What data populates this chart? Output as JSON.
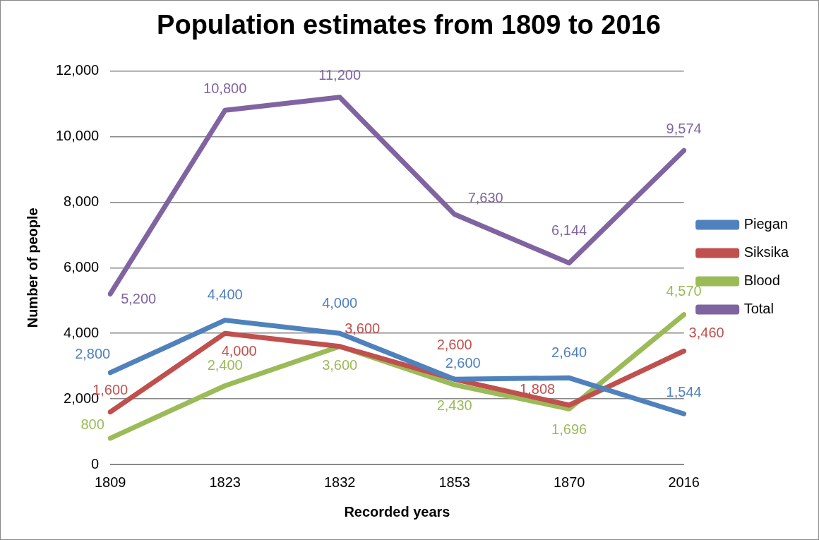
{
  "chart_data": {
    "type": "line",
    "title": "Population estimates from 1809 to 2016",
    "xlabel": "Recorded years",
    "ylabel": "Number of people",
    "categories": [
      "1809",
      "1823",
      "1832",
      "1853",
      "1870",
      "2016"
    ],
    "series": [
      {
        "name": "Piegan",
        "color": "#4f81bd",
        "values": [
          2800,
          4400,
          4000,
          2600,
          2640,
          1544
        ],
        "value_labels": [
          "2,800",
          "4,400",
          "4,000",
          "2,600",
          "2,640",
          "1,544"
        ]
      },
      {
        "name": "Siksika",
        "color": "#c0504d",
        "values": [
          1600,
          4000,
          3600,
          2600,
          1808,
          3460
        ],
        "value_labels": [
          "1,600",
          "4,000",
          "3,600",
          "2,600",
          "1,808",
          "3,460"
        ]
      },
      {
        "name": "Blood",
        "color": "#9bbb59",
        "values": [
          800,
          2400,
          3600,
          2430,
          1696,
          4570
        ],
        "value_labels": [
          "800",
          "2,400",
          "3,600",
          "2,430",
          "1,696",
          "4,570"
        ]
      },
      {
        "name": "Total",
        "color": "#8064a2",
        "values": [
          5200,
          10800,
          11200,
          7630,
          6144,
          9574
        ],
        "value_labels": [
          "5,200",
          "10,800",
          "11,200",
          "7,630",
          "6,144",
          "9,574"
        ]
      }
    ],
    "ylim": [
      0,
      12000
    ],
    "yticks": [
      0,
      {
        "value": 2000,
        "label": "2,000"
      },
      {
        "value": 4000,
        "label": "4,000"
      },
      {
        "value": 6000,
        "label": "6,000"
      },
      {
        "value": 8000,
        "label": "8,000"
      },
      {
        "value": 10000,
        "label": "10,000"
      },
      {
        "value": 12000,
        "label": "12,000"
      }
    ],
    "grid": "y",
    "legend": "right",
    "marker": "none",
    "line_style": "solid"
  }
}
